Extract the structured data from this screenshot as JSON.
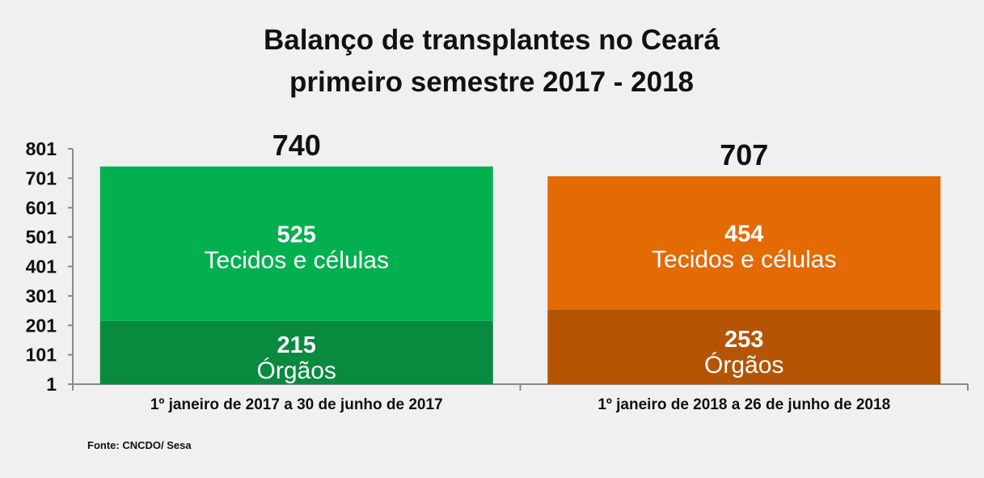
{
  "chart_data": {
    "type": "bar",
    "stacked": true,
    "title": [
      "Balanço de transplantes no Ceará",
      "primeiro semestre 2017 - 2018"
    ],
    "categories": [
      "1º janeiro de 2017 a 30 de junho de 2017",
      "1º janeiro de 2018 a 26 de junho de 2018"
    ],
    "series": [
      {
        "name": "Órgãos",
        "values": [
          215,
          253
        ]
      },
      {
        "name": "Tecidos e células",
        "values": [
          525,
          454
        ]
      }
    ],
    "totals": [
      "740",
      "707"
    ],
    "segment_labels": [
      [
        "215",
        "525"
      ],
      [
        "253",
        "454"
      ]
    ],
    "colors": [
      [
        "#088a3f",
        "#02b04f"
      ],
      [
        "#b55402",
        "#e46a04"
      ]
    ],
    "yticks": [
      "1",
      "101",
      "201",
      "301",
      "401",
      "501",
      "601",
      "701",
      "801"
    ],
    "ylim": [
      1,
      801
    ],
    "xlabel": "",
    "ylabel": "",
    "legend": "none",
    "grid": false
  },
  "source": "Fonte: CNCDO/ Sesa"
}
